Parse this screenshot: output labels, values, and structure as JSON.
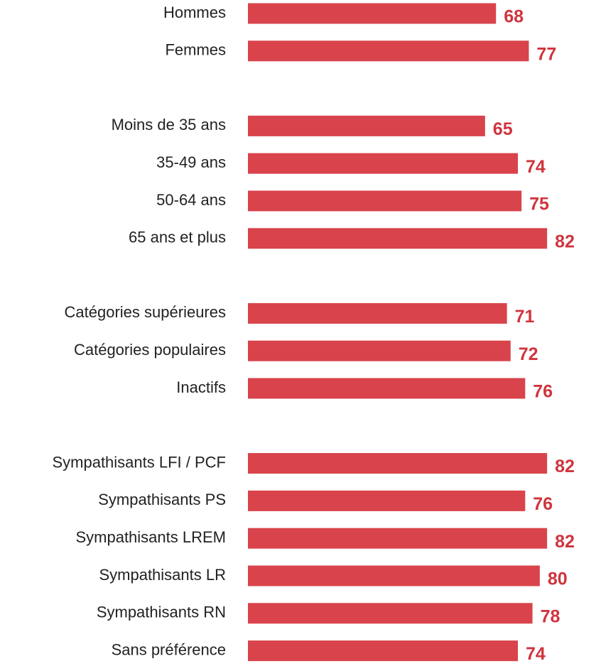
{
  "chart_data": {
    "type": "bar",
    "orientation": "horizontal",
    "color": "#d9434b",
    "label_color": "#d0343d",
    "xlim": [
      0,
      96
    ],
    "groups": [
      {
        "categories": [
          "Hommes",
          "Femmes"
        ],
        "values": [
          68,
          77
        ]
      },
      {
        "categories": [
          "Moins de 35 ans",
          "35-49 ans",
          "50-64 ans",
          "65 ans et plus"
        ],
        "values": [
          65,
          74,
          75,
          82
        ]
      },
      {
        "categories": [
          "Catégories supérieures",
          "Catégories populaires",
          "Inactifs"
        ],
        "values": [
          71,
          72,
          76
        ]
      },
      {
        "categories": [
          "Sympathisants LFI / PCF",
          "Sympathisants PS",
          "Sympathisants LREM",
          "Sympathisants LR",
          "Sympathisants RN",
          "Sans préférence"
        ],
        "values": [
          82,
          76,
          82,
          80,
          78,
          74
        ]
      }
    ]
  }
}
